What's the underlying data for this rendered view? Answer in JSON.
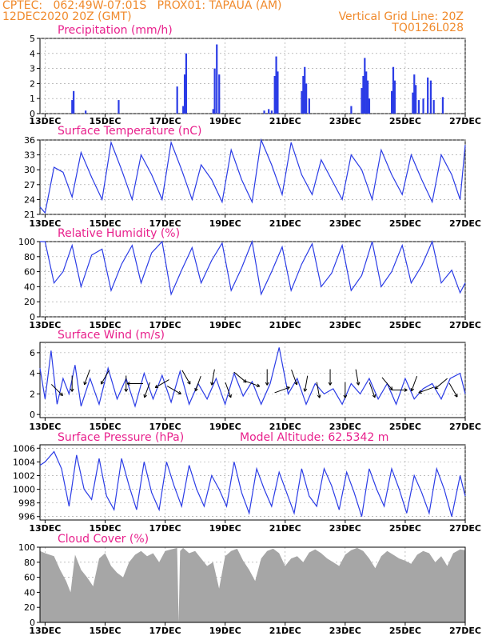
{
  "header": {
    "line1_left": "CPTEC:   062:49W-07:01S   PROX01: TAPAUA (AM)",
    "line2_left": "12DEC2020 20Z (GMT)",
    "line2_right": "Vertical Grid Line: 20Z",
    "line3_right": "TQ0126L028"
  },
  "colors": {
    "header_text": "#f08a2c",
    "panel_title": "#e8208c",
    "series": "#2b3ce6",
    "cloud": "#a6a6a6",
    "arrows": "#000000"
  },
  "x_axis": {
    "start": "12DEC2020 20Z",
    "end": "27DEC2020 00Z",
    "tick_labels": [
      "13DEC",
      "15DEC",
      "17DEC",
      "19DEC",
      "21DEC",
      "23DEC",
      "25DEC",
      "27DEC"
    ],
    "tick_days": [
      13,
      15,
      17,
      19,
      21,
      23,
      25,
      27
    ]
  },
  "chart_data": [
    {
      "type": "bar",
      "title": "Precipitation (mm/h)",
      "ylim": [
        0,
        5
      ],
      "yticks": [
        0,
        1,
        2,
        3,
        4,
        5
      ],
      "x_unit": "day of December 2020",
      "events": [
        {
          "x": 13.9,
          "y": 0.9
        },
        {
          "x": 13.95,
          "y": 1.5
        },
        {
          "x": 14.35,
          "y": 0.2
        },
        {
          "x": 15.45,
          "y": 0.9
        },
        {
          "x": 17.4,
          "y": 1.8
        },
        {
          "x": 17.6,
          "y": 0.5
        },
        {
          "x": 17.65,
          "y": 2.6
        },
        {
          "x": 17.7,
          "y": 4.0
        },
        {
          "x": 18.6,
          "y": 0.3
        },
        {
          "x": 18.65,
          "y": 3.0
        },
        {
          "x": 18.72,
          "y": 4.6
        },
        {
          "x": 18.8,
          "y": 2.6
        },
        {
          "x": 20.3,
          "y": 0.2
        },
        {
          "x": 20.45,
          "y": 0.3
        },
        {
          "x": 20.55,
          "y": 0.2
        },
        {
          "x": 20.65,
          "y": 2.5
        },
        {
          "x": 20.7,
          "y": 3.8
        },
        {
          "x": 20.75,
          "y": 2.8
        },
        {
          "x": 21.55,
          "y": 1.5
        },
        {
          "x": 21.6,
          "y": 2.5
        },
        {
          "x": 21.65,
          "y": 3.1
        },
        {
          "x": 21.7,
          "y": 2.0
        },
        {
          "x": 21.8,
          "y": 1.0
        },
        {
          "x": 23.2,
          "y": 0.5
        },
        {
          "x": 23.55,
          "y": 1.7
        },
        {
          "x": 23.6,
          "y": 2.5
        },
        {
          "x": 23.65,
          "y": 3.7
        },
        {
          "x": 23.7,
          "y": 2.8
        },
        {
          "x": 23.75,
          "y": 2.2
        },
        {
          "x": 23.8,
          "y": 1.0
        },
        {
          "x": 24.55,
          "y": 1.5
        },
        {
          "x": 24.6,
          "y": 3.1
        },
        {
          "x": 24.65,
          "y": 2.2
        },
        {
          "x": 25.25,
          "y": 1.4
        },
        {
          "x": 25.3,
          "y": 2.6
        },
        {
          "x": 25.35,
          "y": 1.9
        },
        {
          "x": 25.45,
          "y": 0.9
        },
        {
          "x": 25.6,
          "y": 1.0
        },
        {
          "x": 25.75,
          "y": 2.4
        },
        {
          "x": 25.85,
          "y": 2.2
        },
        {
          "x": 25.95,
          "y": 0.9
        },
        {
          "x": 26.25,
          "y": 1.1
        }
      ]
    },
    {
      "type": "line",
      "title": "Surface Temperature (nC)",
      "ylim": [
        21,
        36
      ],
      "yticks": [
        21,
        24,
        27,
        30,
        33,
        36
      ],
      "x": [
        12.83,
        13.0,
        13.3,
        13.6,
        13.9,
        14.2,
        14.55,
        14.9,
        15.2,
        15.55,
        15.9,
        16.2,
        16.55,
        16.9,
        17.2,
        17.55,
        17.9,
        18.2,
        18.55,
        18.9,
        19.2,
        19.55,
        19.9,
        20.2,
        20.55,
        20.9,
        21.2,
        21.55,
        21.9,
        22.2,
        22.55,
        22.9,
        23.2,
        23.55,
        23.9,
        24.2,
        24.55,
        24.9,
        25.2,
        25.55,
        25.9,
        26.2,
        26.55,
        26.83,
        27.0
      ],
      "y": [
        22.5,
        21.3,
        30.5,
        29.5,
        24.5,
        33.5,
        28.5,
        24,
        35.5,
        30,
        24,
        33,
        29,
        24,
        35.5,
        30,
        24,
        31,
        28,
        23.5,
        34,
        28,
        23.5,
        36,
        31,
        25,
        35.5,
        29,
        25,
        32,
        28,
        24,
        33,
        30,
        24,
        34,
        29,
        25,
        33,
        28,
        23.5,
        33,
        29,
        24,
        35
      ]
    },
    {
      "type": "line",
      "title": "Relative Humidity (%)",
      "ylim": [
        0,
        100
      ],
      "yticks": [
        0,
        20,
        40,
        60,
        80,
        100
      ],
      "x": [
        12.83,
        13.0,
        13.3,
        13.6,
        13.9,
        14.2,
        14.55,
        14.9,
        15.2,
        15.55,
        15.9,
        16.2,
        16.55,
        16.9,
        17.2,
        17.55,
        17.9,
        18.2,
        18.55,
        18.9,
        19.2,
        19.55,
        19.9,
        20.2,
        20.55,
        20.9,
        21.2,
        21.55,
        21.9,
        22.2,
        22.55,
        22.9,
        23.2,
        23.55,
        23.9,
        24.2,
        24.55,
        24.9,
        25.2,
        25.55,
        25.9,
        26.2,
        26.55,
        26.83,
        27.0
      ],
      "y": [
        100,
        100,
        45,
        60,
        95,
        40,
        82,
        90,
        35,
        70,
        95,
        45,
        85,
        100,
        30,
        62,
        92,
        45,
        75,
        98,
        35,
        65,
        100,
        30,
        60,
        93,
        35,
        70,
        97,
        40,
        58,
        95,
        35,
        55,
        100,
        40,
        60,
        95,
        45,
        68,
        100,
        45,
        62,
        32,
        45
      ]
    },
    {
      "type": "line",
      "title": "Surface Wind (m/s)",
      "ylim": [
        -0.3,
        7
      ],
      "yticks": [
        0,
        2,
        4,
        6
      ],
      "x": [
        12.83,
        13.0,
        13.2,
        13.4,
        13.6,
        13.8,
        14.0,
        14.2,
        14.5,
        14.8,
        15.1,
        15.4,
        15.7,
        16.0,
        16.3,
        16.6,
        16.9,
        17.2,
        17.5,
        17.8,
        18.1,
        18.4,
        18.7,
        19.0,
        19.3,
        19.6,
        19.9,
        20.2,
        20.5,
        20.8,
        21.1,
        21.4,
        21.7,
        22.0,
        22.3,
        22.6,
        22.9,
        23.2,
        23.5,
        23.8,
        24.1,
        24.4,
        24.7,
        25.0,
        25.3,
        25.6,
        25.9,
        26.2,
        26.5,
        26.83,
        27.0
      ],
      "y": [
        4.5,
        1.5,
        6.2,
        1.0,
        3.5,
        2.0,
        4.8,
        0.8,
        3.5,
        1.0,
        4.5,
        1.5,
        3.5,
        0.8,
        4.0,
        1.5,
        3.8,
        1.2,
        4.2,
        1.0,
        3.0,
        1.5,
        3.5,
        1.0,
        4.0,
        1.8,
        3.2,
        1.0,
        3.0,
        6.5,
        2.0,
        3.5,
        1.0,
        3.0,
        2.0,
        2.5,
        1.0,
        3.0,
        2.0,
        3.5,
        1.5,
        3.0,
        1.0,
        3.5,
        1.5,
        2.5,
        3.0,
        1.5,
        3.5,
        4.0,
        2.0
      ],
      "arrows": [
        {
          "x": 13.4,
          "deg": 135
        },
        {
          "x": 13.9,
          "deg": 180
        },
        {
          "x": 14.4,
          "deg": 200
        },
        {
          "x": 15.0,
          "deg": 210
        },
        {
          "x": 15.7,
          "deg": 180
        },
        {
          "x": 16.0,
          "deg": 270
        },
        {
          "x": 16.4,
          "deg": 200
        },
        {
          "x": 16.9,
          "deg": 240
        },
        {
          "x": 17.3,
          "deg": 120
        },
        {
          "x": 17.7,
          "deg": 150
        },
        {
          "x": 18.1,
          "deg": 200
        },
        {
          "x": 18.6,
          "deg": 190
        },
        {
          "x": 19.1,
          "deg": 160
        },
        {
          "x": 19.5,
          "deg": 130
        },
        {
          "x": 19.9,
          "deg": 110
        },
        {
          "x": 20.4,
          "deg": 180
        },
        {
          "x": 20.9,
          "deg": 70
        },
        {
          "x": 21.3,
          "deg": 160
        },
        {
          "x": 21.7,
          "deg": 190
        },
        {
          "x": 22.1,
          "deg": 170
        },
        {
          "x": 22.5,
          "deg": 180
        },
        {
          "x": 23.0,
          "deg": 180
        },
        {
          "x": 23.4,
          "deg": 170
        },
        {
          "x": 23.9,
          "deg": 160
        },
        {
          "x": 24.4,
          "deg": 140
        },
        {
          "x": 24.8,
          "deg": 90
        },
        {
          "x": 25.3,
          "deg": 200
        },
        {
          "x": 25.7,
          "deg": 250
        },
        {
          "x": 26.2,
          "deg": 230
        },
        {
          "x": 26.6,
          "deg": 150
        }
      ]
    },
    {
      "type": "line",
      "title": "Surface Pressure (hPa)",
      "annotation": "Model Altitude: 62.5342 m",
      "ylim": [
        995.5,
        1006.5
      ],
      "yticks": [
        996,
        998,
        1000,
        1002,
        1004,
        1006
      ],
      "x": [
        12.83,
        13.0,
        13.3,
        13.55,
        13.8,
        14.05,
        14.3,
        14.55,
        14.8,
        15.05,
        15.3,
        15.55,
        15.8,
        16.05,
        16.3,
        16.55,
        16.8,
        17.05,
        17.3,
        17.55,
        17.8,
        18.05,
        18.3,
        18.55,
        18.8,
        19.05,
        19.3,
        19.55,
        19.8,
        20.05,
        20.3,
        20.55,
        20.8,
        21.05,
        21.3,
        21.55,
        21.8,
        22.05,
        22.3,
        22.55,
        22.8,
        23.05,
        23.3,
        23.55,
        23.8,
        24.05,
        24.3,
        24.55,
        24.8,
        25.05,
        25.3,
        25.55,
        25.8,
        26.05,
        26.3,
        26.55,
        26.83,
        27.0
      ],
      "y": [
        1003.5,
        1004,
        1005.5,
        1003,
        997.5,
        1005,
        1000,
        998.5,
        1004.5,
        999,
        997,
        1004.5,
        1000.5,
        997,
        1004,
        999.5,
        997,
        1004,
        1000.5,
        997.5,
        1003.5,
        1000,
        997.5,
        1002,
        1000,
        997.5,
        1004,
        999.5,
        996.5,
        1003,
        1000,
        997.5,
        1002.5,
        999.5,
        996.5,
        1003,
        999,
        997.5,
        1003,
        1000.5,
        997,
        1002.5,
        999.5,
        996,
        1003,
        1000,
        997.5,
        1003,
        1000,
        996.5,
        1002,
        999.5,
        996.5,
        1003,
        1000,
        996,
        1002,
        999
      ]
    },
    {
      "type": "area",
      "title": "Cloud Cover (%)",
      "ylim": [
        0,
        100
      ],
      "yticks": [
        0,
        20,
        40,
        60,
        80,
        100
      ],
      "x": [
        12.83,
        13.0,
        13.3,
        13.5,
        13.7,
        13.85,
        14.0,
        14.2,
        14.4,
        14.6,
        14.8,
        15.0,
        15.2,
        15.4,
        15.6,
        15.8,
        16.0,
        16.2,
        16.4,
        16.6,
        16.8,
        17.0,
        17.2,
        17.4,
        17.45,
        17.5,
        17.6,
        17.8,
        18.0,
        18.2,
        18.4,
        18.6,
        18.8,
        19.0,
        19.2,
        19.4,
        19.6,
        19.8,
        20.0,
        20.2,
        20.4,
        20.6,
        20.8,
        21.0,
        21.2,
        21.4,
        21.6,
        21.8,
        22.0,
        22.2,
        22.4,
        22.6,
        22.8,
        23.0,
        23.2,
        23.4,
        23.6,
        23.8,
        24.0,
        24.2,
        24.4,
        24.6,
        24.8,
        25.0,
        25.2,
        25.4,
        25.6,
        25.8,
        26.0,
        26.2,
        26.4,
        26.6,
        26.83,
        27.0
      ],
      "y": [
        95,
        92,
        88,
        70,
        55,
        40,
        90,
        70,
        60,
        48,
        85,
        92,
        75,
        66,
        60,
        80,
        90,
        95,
        88,
        92,
        80,
        95,
        97,
        99,
        0,
        95,
        99,
        92,
        95,
        85,
        75,
        80,
        45,
        88,
        95,
        98,
        82,
        70,
        55,
        85,
        95,
        98,
        92,
        75,
        85,
        88,
        80,
        93,
        97,
        92,
        85,
        80,
        75,
        90,
        96,
        99,
        95,
        85,
        72,
        88,
        95,
        90,
        85,
        82,
        78,
        90,
        95,
        92,
        80,
        88,
        75,
        92,
        97,
        96
      ]
    }
  ]
}
